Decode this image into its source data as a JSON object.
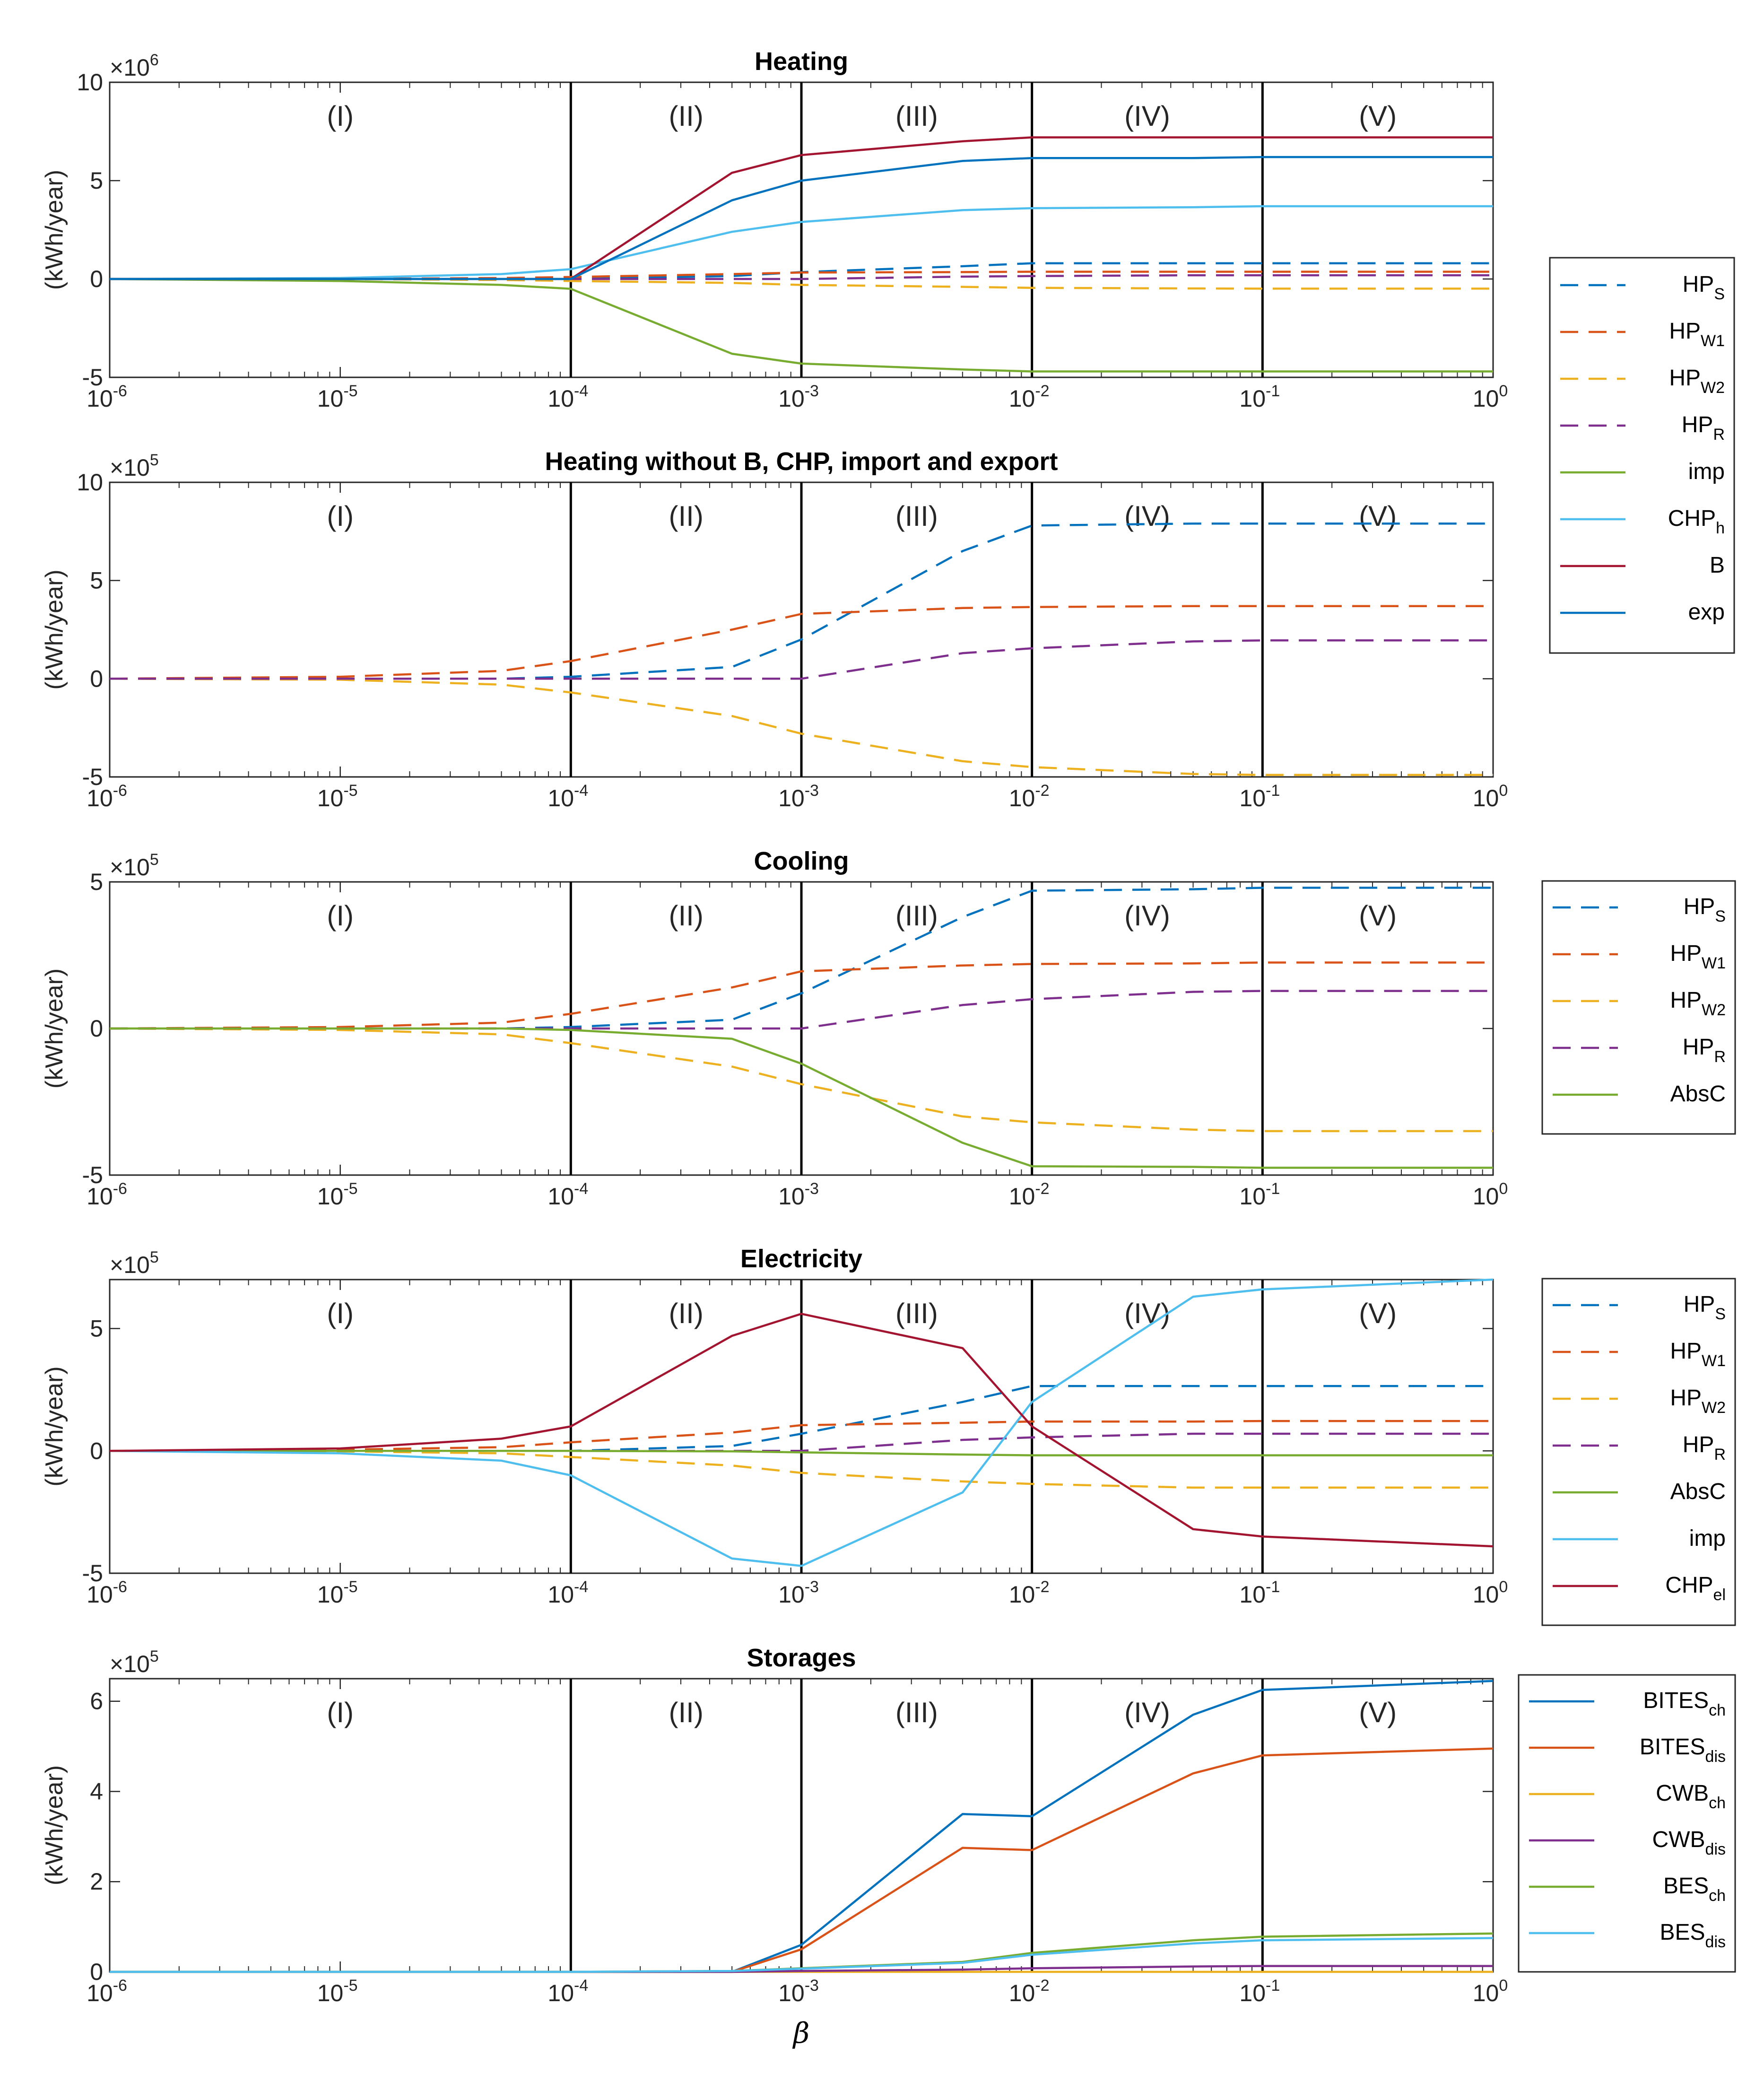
{
  "colors": {
    "blue": "#0072BD",
    "orange": "#D95319",
    "yellow": "#EDB120",
    "purple": "#7E2F8E",
    "green": "#77AC30",
    "cyan": "#4DBEEE",
    "red": "#A2142F"
  },
  "x_axis": {
    "label": "β",
    "tick_exponents": [
      -6,
      -5,
      -4,
      -3,
      -2,
      -1,
      0
    ],
    "tick_base": "10",
    "region_boundaries": [
      0.0001,
      0.001,
      0.01,
      0.1
    ],
    "region_labels": [
      "(I)",
      "(II)",
      "(III)",
      "(IV)",
      "(V)"
    ]
  },
  "chart_data": [
    {
      "type": "line",
      "title": "Heating",
      "ylabel": "(kWh/year)",
      "multiplier": {
        "base": "×10",
        "exponent": "6"
      },
      "ylim": [
        -5,
        10
      ],
      "yticks": [
        -5,
        0,
        5,
        10
      ],
      "xscale": "log",
      "xlim": [
        1e-06,
        1
      ],
      "legend": "right-middle",
      "series": [
        {
          "name": "HP",
          "sub": "S",
          "color": "blue",
          "dashed": true,
          "x": [
            1e-06,
            1e-05,
            5e-05,
            0.0001,
            0.0005,
            0.001,
            0.005,
            0.01,
            0.05,
            0.1,
            1
          ],
          "y": [
            0,
            0,
            0,
            0,
            0.15,
            0.35,
            0.65,
            0.8,
            0.8,
            0.8,
            0.8
          ]
        },
        {
          "name": "HP",
          "sub": "W1",
          "color": "orange",
          "dashed": true,
          "x": [
            1e-06,
            1e-05,
            5e-05,
            0.0001,
            0.0005,
            0.001,
            0.005,
            0.01,
            0.05,
            0.1,
            1
          ],
          "y": [
            0,
            0,
            0.05,
            0.1,
            0.25,
            0.33,
            0.35,
            0.37,
            0.37,
            0.37,
            0.37
          ]
        },
        {
          "name": "HP",
          "sub": "W2",
          "color": "yellow",
          "dashed": true,
          "x": [
            1e-06,
            1e-05,
            5e-05,
            0.0001,
            0.0005,
            0.001,
            0.005,
            0.01,
            0.05,
            0.1,
            1
          ],
          "y": [
            0,
            0,
            -0.05,
            -0.1,
            -0.2,
            -0.3,
            -0.4,
            -0.45,
            -0.48,
            -0.49,
            -0.49
          ]
        },
        {
          "name": "HP",
          "sub": "R",
          "color": "purple",
          "dashed": true,
          "x": [
            1e-06,
            1e-05,
            5e-05,
            0.0001,
            0.0005,
            0.001,
            0.005,
            0.01,
            0.05,
            0.1,
            1
          ],
          "y": [
            0,
            0,
            0,
            0,
            0,
            0,
            0.12,
            0.15,
            0.19,
            0.19,
            0.19
          ]
        },
        {
          "name": "imp",
          "sub": "",
          "color": "green",
          "dashed": false,
          "x": [
            1e-06,
            1e-05,
            5e-05,
            0.0001,
            0.0005,
            0.001,
            0.005,
            0.01,
            0.05,
            0.1,
            1
          ],
          "y": [
            0,
            -0.1,
            -0.3,
            -0.5,
            -3.8,
            -4.3,
            -4.6,
            -4.7,
            -4.7,
            -4.7,
            -4.7
          ]
        },
        {
          "name": "CHP",
          "sub": "h",
          "color": "cyan",
          "dashed": false,
          "x": [
            1e-06,
            1e-05,
            5e-05,
            0.0001,
            0.0005,
            0.001,
            0.005,
            0.01,
            0.05,
            0.1,
            1
          ],
          "y": [
            0,
            0.05,
            0.25,
            0.5,
            2.4,
            2.9,
            3.5,
            3.6,
            3.65,
            3.7,
            3.7
          ]
        },
        {
          "name": "B",
          "sub": "",
          "color": "red",
          "dashed": false,
          "x": [
            1e-06,
            1e-05,
            5e-05,
            0.0001,
            0.0005,
            0.001,
            0.005,
            0.01,
            0.05,
            0.1,
            1
          ],
          "y": [
            0,
            0,
            0,
            0,
            5.4,
            6.3,
            7.0,
            7.2,
            7.2,
            7.2,
            7.2
          ]
        },
        {
          "name": "exp",
          "sub": "",
          "color": "blue",
          "dashed": false,
          "x": [
            1e-06,
            1e-05,
            5e-05,
            0.0001,
            0.0005,
            0.001,
            0.005,
            0.01,
            0.05,
            0.1,
            1
          ],
          "y": [
            0,
            0,
            0,
            0,
            4.0,
            5.0,
            6.0,
            6.15,
            6.15,
            6.2,
            6.2
          ]
        }
      ]
    },
    {
      "type": "line",
      "title": "Heating without B, CHP, import and export",
      "ylabel": "(kWh/year)",
      "multiplier": {
        "base": "×10",
        "exponent": "5"
      },
      "ylim": [
        -5,
        10
      ],
      "yticks": [
        -5,
        0,
        5,
        10
      ],
      "xscale": "log",
      "xlim": [
        1e-06,
        1
      ],
      "legend": "none",
      "series": [
        {
          "name": "HP",
          "sub": "S",
          "color": "blue",
          "dashed": true,
          "x": [
            1e-06,
            1e-05,
            5e-05,
            0.0001,
            0.0005,
            0.001,
            0.005,
            0.01,
            0.05,
            0.1,
            1
          ],
          "y": [
            0,
            0,
            0,
            0.1,
            0.6,
            2.0,
            6.5,
            7.8,
            7.9,
            7.9,
            7.9
          ]
        },
        {
          "name": "HP",
          "sub": "W1",
          "color": "orange",
          "dashed": true,
          "x": [
            1e-06,
            1e-05,
            5e-05,
            0.0001,
            0.0005,
            0.001,
            0.005,
            0.01,
            0.05,
            0.1,
            1
          ],
          "y": [
            0,
            0.1,
            0.4,
            0.9,
            2.5,
            3.3,
            3.6,
            3.65,
            3.7,
            3.7,
            3.7
          ]
        },
        {
          "name": "HP",
          "sub": "W2",
          "color": "yellow",
          "dashed": true,
          "x": [
            1e-06,
            1e-05,
            5e-05,
            0.0001,
            0.0005,
            0.001,
            0.005,
            0.01,
            0.05,
            0.1,
            1
          ],
          "y": [
            0,
            -0.05,
            -0.3,
            -0.7,
            -1.9,
            -2.8,
            -4.2,
            -4.5,
            -4.85,
            -4.9,
            -4.9
          ]
        },
        {
          "name": "HP",
          "sub": "R",
          "color": "purple",
          "dashed": true,
          "x": [
            1e-06,
            1e-05,
            5e-05,
            0.0001,
            0.0005,
            0.001,
            0.005,
            0.01,
            0.05,
            0.1,
            1
          ],
          "y": [
            0,
            0,
            0,
            0,
            0,
            0,
            1.3,
            1.55,
            1.9,
            1.95,
            1.95
          ]
        }
      ]
    },
    {
      "type": "line",
      "title": "Cooling",
      "ylabel": "(kWh/year)",
      "multiplier": {
        "base": "×10",
        "exponent": "5"
      },
      "ylim": [
        -5,
        5
      ],
      "yticks": [
        -5,
        0,
        5
      ],
      "xscale": "log",
      "xlim": [
        1e-06,
        1
      ],
      "legend": "right-middle",
      "series": [
        {
          "name": "HP",
          "sub": "S",
          "color": "blue",
          "dashed": true,
          "x": [
            1e-06,
            1e-05,
            5e-05,
            0.0001,
            0.0005,
            0.001,
            0.005,
            0.01,
            0.05,
            0.1,
            1
          ],
          "y": [
            0,
            0,
            0,
            0.05,
            0.3,
            1.2,
            3.8,
            4.7,
            4.75,
            4.8,
            4.8
          ]
        },
        {
          "name": "HP",
          "sub": "W1",
          "color": "orange",
          "dashed": true,
          "x": [
            1e-06,
            1e-05,
            5e-05,
            0.0001,
            0.0005,
            0.001,
            0.005,
            0.01,
            0.05,
            0.1,
            1
          ],
          "y": [
            0,
            0.05,
            0.2,
            0.5,
            1.4,
            1.95,
            2.15,
            2.2,
            2.22,
            2.25,
            2.25
          ]
        },
        {
          "name": "HP",
          "sub": "W2",
          "color": "yellow",
          "dashed": true,
          "x": [
            1e-06,
            1e-05,
            5e-05,
            0.0001,
            0.0005,
            0.001,
            0.005,
            0.01,
            0.05,
            0.1,
            1
          ],
          "y": [
            0,
            -0.05,
            -0.2,
            -0.5,
            -1.3,
            -1.9,
            -3.0,
            -3.2,
            -3.45,
            -3.5,
            -3.5
          ]
        },
        {
          "name": "HP",
          "sub": "R",
          "color": "purple",
          "dashed": true,
          "x": [
            1e-06,
            1e-05,
            5e-05,
            0.0001,
            0.0005,
            0.001,
            0.005,
            0.01,
            0.05,
            0.1,
            1
          ],
          "y": [
            0,
            0,
            0,
            0,
            0,
            0,
            0.8,
            1.0,
            1.25,
            1.28,
            1.28
          ]
        },
        {
          "name": "AbsC",
          "sub": "",
          "color": "green",
          "dashed": false,
          "x": [
            1e-06,
            1e-05,
            5e-05,
            0.0001,
            0.0005,
            0.001,
            0.005,
            0.01,
            0.05,
            0.1,
            1
          ],
          "y": [
            0,
            0,
            0,
            -0.05,
            -0.35,
            -1.2,
            -3.9,
            -4.7,
            -4.72,
            -4.75,
            -4.75
          ]
        }
      ]
    },
    {
      "type": "line",
      "title": "Electricity",
      "ylabel": "(kWh/year)",
      "multiplier": {
        "base": "×10",
        "exponent": "5"
      },
      "ylim": [
        -5,
        7
      ],
      "yticks": [
        -5,
        0,
        5
      ],
      "xscale": "log",
      "xlim": [
        1e-06,
        1
      ],
      "legend": "right-middle",
      "series": [
        {
          "name": "HP",
          "sub": "S",
          "color": "blue",
          "dashed": true,
          "x": [
            1e-06,
            1e-05,
            5e-05,
            0.0001,
            0.0005,
            0.001,
            0.005,
            0.01,
            0.05,
            0.1,
            1
          ],
          "y": [
            0,
            0,
            0,
            0,
            0.2,
            0.7,
            2.0,
            2.65,
            2.65,
            2.65,
            2.65
          ]
        },
        {
          "name": "HP",
          "sub": "W1",
          "color": "orange",
          "dashed": true,
          "x": [
            1e-06,
            1e-05,
            5e-05,
            0.0001,
            0.0005,
            0.001,
            0.005,
            0.01,
            0.05,
            0.1,
            1
          ],
          "y": [
            0,
            0.05,
            0.15,
            0.35,
            0.75,
            1.05,
            1.15,
            1.2,
            1.2,
            1.22,
            1.22
          ]
        },
        {
          "name": "HP",
          "sub": "W2",
          "color": "yellow",
          "dashed": true,
          "x": [
            1e-06,
            1e-05,
            5e-05,
            0.0001,
            0.0005,
            0.001,
            0.005,
            0.01,
            0.05,
            0.1,
            1
          ],
          "y": [
            0,
            -0.02,
            -0.1,
            -0.25,
            -0.6,
            -0.9,
            -1.25,
            -1.35,
            -1.5,
            -1.5,
            -1.5
          ]
        },
        {
          "name": "HP",
          "sub": "R",
          "color": "purple",
          "dashed": true,
          "x": [
            1e-06,
            1e-05,
            5e-05,
            0.0001,
            0.0005,
            0.001,
            0.005,
            0.01,
            0.05,
            0.1,
            1
          ],
          "y": [
            0,
            0,
            0,
            0,
            0,
            0,
            0.45,
            0.55,
            0.7,
            0.7,
            0.7
          ]
        },
        {
          "name": "AbsC",
          "sub": "",
          "color": "green",
          "dashed": false,
          "x": [
            1e-06,
            1e-05,
            5e-05,
            0.0001,
            0.0005,
            0.001,
            0.005,
            0.01,
            0.05,
            0.1,
            1
          ],
          "y": [
            0,
            0,
            0,
            0,
            -0.02,
            -0.06,
            -0.15,
            -0.18,
            -0.18,
            -0.18,
            -0.18
          ]
        },
        {
          "name": "imp",
          "sub": "",
          "color": "cyan",
          "dashed": false,
          "x": [
            1e-06,
            1e-05,
            5e-05,
            0.0001,
            0.0005,
            0.001,
            0.005,
            0.01,
            0.05,
            0.1,
            1
          ],
          "y": [
            0,
            -0.1,
            -0.4,
            -1.0,
            -4.4,
            -4.7,
            -1.7,
            2.0,
            6.3,
            6.6,
            7.0
          ]
        },
        {
          "name": "CHP",
          "sub": "el",
          "color": "red",
          "dashed": false,
          "x": [
            1e-06,
            1e-05,
            5e-05,
            0.0001,
            0.0005,
            0.001,
            0.005,
            0.01,
            0.05,
            0.1,
            1
          ],
          "y": [
            0,
            0.1,
            0.5,
            1.0,
            4.7,
            5.6,
            4.2,
            1.0,
            -3.2,
            -3.5,
            -3.9
          ]
        }
      ]
    },
    {
      "type": "line",
      "title": "Storages",
      "ylabel": "(kWh/year)",
      "multiplier": {
        "base": "×10",
        "exponent": "5"
      },
      "ylim": [
        0,
        6.5
      ],
      "yticks": [
        0,
        2,
        4,
        6
      ],
      "xscale": "log",
      "xlim": [
        1e-06,
        1
      ],
      "legend": "right-middle",
      "series": [
        {
          "name": "BITES",
          "sub": "ch",
          "color": "blue",
          "dashed": false,
          "x": [
            1e-06,
            1e-05,
            5e-05,
            0.0001,
            0.0005,
            0.001,
            0.005,
            0.01,
            0.05,
            0.1,
            1
          ],
          "y": [
            0,
            0,
            0,
            0,
            0,
            0.6,
            3.5,
            3.45,
            5.7,
            6.25,
            6.45
          ]
        },
        {
          "name": "BITES",
          "sub": "dis",
          "color": "orange",
          "dashed": false,
          "x": [
            1e-06,
            1e-05,
            5e-05,
            0.0001,
            0.0005,
            0.001,
            0.005,
            0.01,
            0.05,
            0.1,
            1
          ],
          "y": [
            0,
            0,
            0,
            0,
            0,
            0.5,
            2.75,
            2.7,
            4.4,
            4.8,
            4.95
          ]
        },
        {
          "name": "CWB",
          "sub": "ch",
          "color": "yellow",
          "dashed": false,
          "x": [
            1e-06,
            1e-05,
            5e-05,
            0.0001,
            0.0005,
            0.001,
            0.005,
            0.01,
            0.05,
            0.1,
            1
          ],
          "y": [
            0,
            0,
            0,
            0,
            0,
            0,
            0,
            0,
            0,
            0,
            0
          ]
        },
        {
          "name": "CWB",
          "sub": "dis",
          "color": "purple",
          "dashed": false,
          "x": [
            1e-06,
            1e-05,
            5e-05,
            0.0001,
            0.0005,
            0.001,
            0.005,
            0.01,
            0.05,
            0.1,
            1
          ],
          "y": [
            0,
            0,
            0,
            0,
            0,
            0.02,
            0.05,
            0.08,
            0.12,
            0.13,
            0.13
          ]
        },
        {
          "name": "BES",
          "sub": "ch",
          "color": "green",
          "dashed": false,
          "x": [
            1e-06,
            1e-05,
            5e-05,
            0.0001,
            0.0005,
            0.001,
            0.005,
            0.01,
            0.05,
            0.1,
            1
          ],
          "y": [
            0,
            0,
            0,
            0,
            0.02,
            0.08,
            0.22,
            0.42,
            0.7,
            0.78,
            0.85
          ]
        },
        {
          "name": "BES",
          "sub": "dis",
          "color": "cyan",
          "dashed": false,
          "x": [
            1e-06,
            1e-05,
            5e-05,
            0.0001,
            0.0005,
            0.001,
            0.005,
            0.01,
            0.05,
            0.1,
            1
          ],
          "y": [
            0,
            0,
            0,
            0,
            0.02,
            0.07,
            0.2,
            0.38,
            0.63,
            0.7,
            0.75
          ]
        }
      ]
    }
  ]
}
